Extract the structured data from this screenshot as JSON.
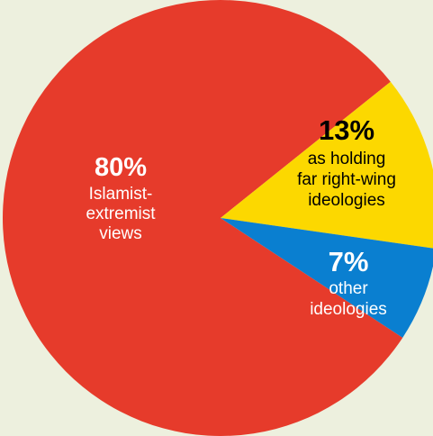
{
  "chart_data": {
    "type": "pie",
    "title": "",
    "slices": [
      {
        "value": 80,
        "percent_label": "80%",
        "description": [
          "Islamist-",
          "extremist",
          "views"
        ],
        "color": "#E63B2B",
        "text_color": "#FFFFFF"
      },
      {
        "value": 13,
        "percent_label": "13%",
        "description": [
          "as holding",
          "far right-wing",
          "ideologies"
        ],
        "color": "#FCD800",
        "text_color": "#000000"
      },
      {
        "value": 7,
        "percent_label": "7%",
        "description": [
          "other",
          "ideologies"
        ],
        "color": "#0A7FD0",
        "text_color": "#FFFFFF"
      }
    ]
  }
}
